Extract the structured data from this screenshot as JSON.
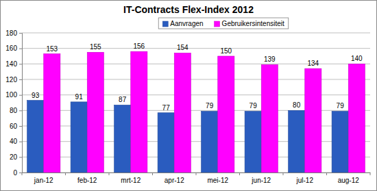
{
  "chart_data": {
    "type": "bar",
    "title": "IT-Contracts Flex-Index 2012",
    "categories": [
      "jan-12",
      "feb-12",
      "mrt-12",
      "apr-12",
      "mei-12",
      "jun-12",
      "jul-12",
      "aug-12"
    ],
    "series": [
      {
        "name": "Aanvragen",
        "color": "#2a5cbf",
        "values": [
          93,
          91,
          87,
          77,
          79,
          79,
          80,
          79
        ]
      },
      {
        "name": "Gebruikersintensiteit",
        "color": "#ff00ff",
        "values": [
          153,
          155,
          156,
          154,
          150,
          139,
          134,
          140
        ]
      }
    ],
    "ylim": [
      0,
      180
    ],
    "yticks": [
      0,
      20,
      40,
      60,
      80,
      100,
      120,
      140,
      160,
      180
    ],
    "grid": true,
    "legend": "top",
    "data_labels": true
  }
}
